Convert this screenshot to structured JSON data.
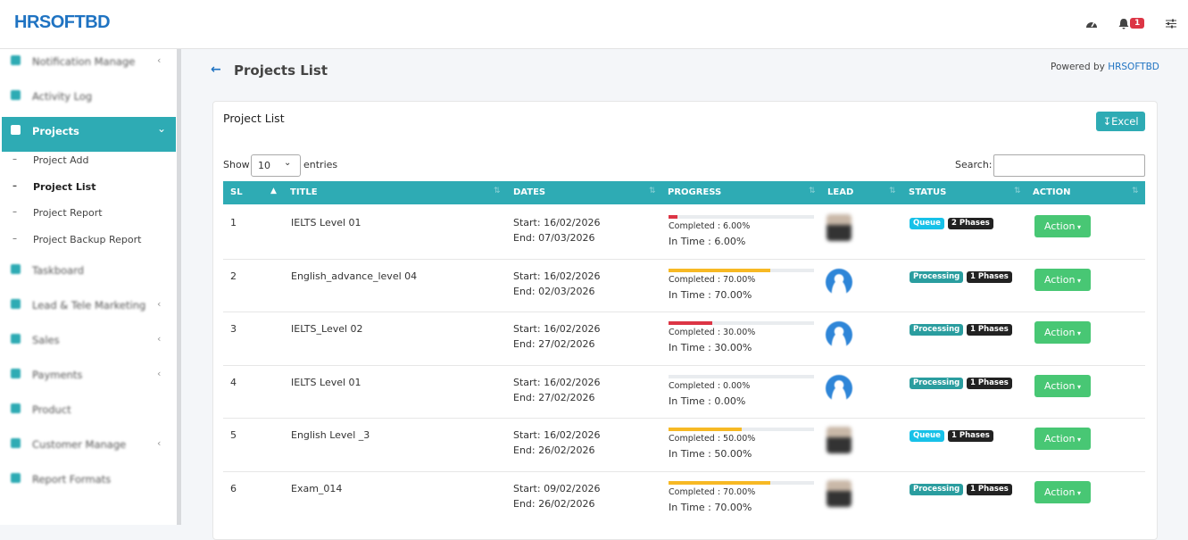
{
  "header": {
    "logo": "HRSOFTBD",
    "notification_count": "1"
  },
  "sidebar": {
    "items": [
      {
        "label": "Notification Manage"
      },
      {
        "label": "Activity Log"
      },
      {
        "label": "Projects",
        "children": [
          "Project Add",
          "Project List",
          "Project Report",
          "Project Backup Report"
        ]
      },
      {
        "label": "Taskboard"
      },
      {
        "label": "Lead & Tele Marketing"
      },
      {
        "label": "Sales"
      },
      {
        "label": "Payments"
      },
      {
        "label": "Product"
      },
      {
        "label": "Customer Manage"
      },
      {
        "label": "Report Formats"
      }
    ]
  },
  "page": {
    "title": "Projects List",
    "powered_by": "Powered by",
    "powered_by_link": "HRSOFTBD"
  },
  "card": {
    "title": "Project List",
    "excel": "Excel",
    "show": "Show",
    "page_length": "10",
    "entries": "entries",
    "search": "Search:"
  },
  "table": {
    "columns": [
      "SL",
      "TITLE",
      "DATES",
      "PROGRESS",
      "LEAD",
      "STATUS",
      "ACTION"
    ],
    "rows": [
      {
        "sl": "1",
        "title": "IELTS Level 01",
        "start": "Start: 16/02/2026",
        "end": "End: 07/03/2026",
        "progress": 6,
        "progress_color": "#dc3545",
        "completed": "Completed : 6.00%",
        "in_time": "In Time : 6.00%",
        "status": "Queue",
        "status_color": "#17c1e8",
        "phases": "2 Phases",
        "action": "Action"
      },
      {
        "sl": "2",
        "title": "English_advance_level 04",
        "start": "Start: 16/02/2026",
        "end": "End: 02/03/2026",
        "progress": 70,
        "progress_color": "#f7b924",
        "completed": "Completed : 70.00%",
        "in_time": "In Time : 70.00%",
        "status": "Processing",
        "status_color": "#2a9d9f",
        "phases": "1 Phases",
        "action": "Action"
      },
      {
        "sl": "3",
        "title": "IELTS_Level 02",
        "start": "Start: 16/02/2026",
        "end": "End: 27/02/2026",
        "progress": 30,
        "progress_color": "#dc3545",
        "completed": "Completed : 30.00%",
        "in_time": "In Time : 30.00%",
        "status": "Processing",
        "status_color": "#2a9d9f",
        "phases": "1 Phases",
        "action": "Action"
      },
      {
        "sl": "4",
        "title": "IELTS Level 01",
        "start": "Start: 16/02/2026",
        "end": "End: 27/02/2026",
        "progress": 0,
        "progress_color": "#dc3545",
        "completed": "Completed : 0.00%",
        "in_time": "In Time : 0.00%",
        "status": "Processing",
        "status_color": "#2a9d9f",
        "phases": "1 Phases",
        "action": "Action"
      },
      {
        "sl": "5",
        "title": "English Level _3",
        "start": "Start: 16/02/2026",
        "end": "End: 26/02/2026",
        "progress": 50,
        "progress_color": "#f7b924",
        "completed": "Completed : 50.00%",
        "in_time": "In Time : 50.00%",
        "status": "Queue",
        "status_color": "#17c1e8",
        "phases": "1 Phases",
        "action": "Action"
      },
      {
        "sl": "6",
        "title": "Exam_014",
        "start": "Start: 09/02/2026",
        "end": "End: 26/02/2026",
        "progress": 70,
        "progress_color": "#f7b924",
        "completed": "Completed : 70.00%",
        "in_time": "In Time : 70.00%",
        "status": "Processing",
        "status_color": "#2a9d9f",
        "phases": "1 Phases",
        "action": "Action"
      }
    ]
  }
}
